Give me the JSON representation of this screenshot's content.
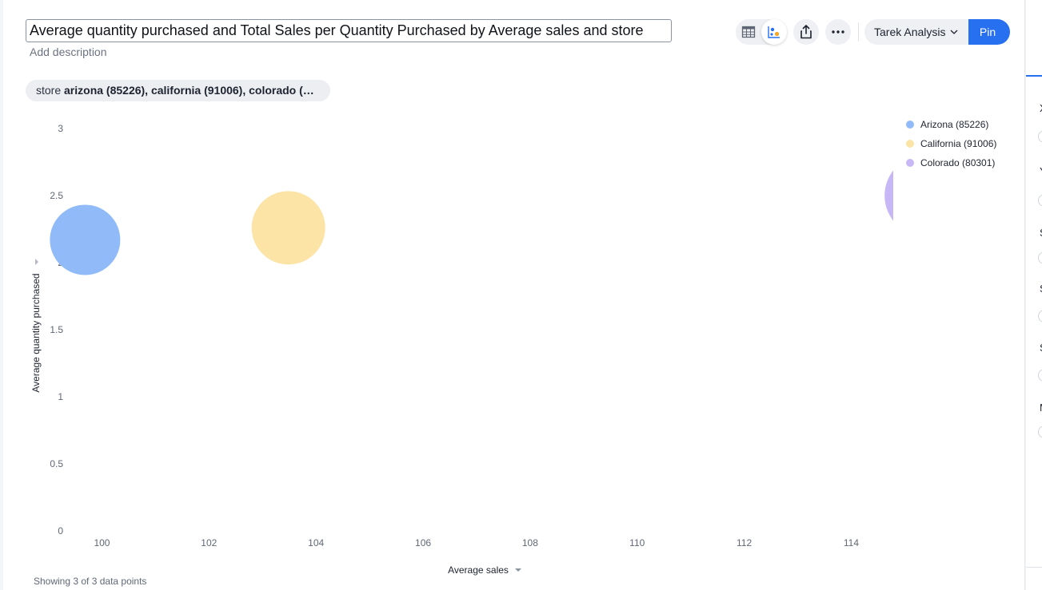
{
  "header": {
    "title": "Average quantity purchased and Total Sales per Quantity Purchased by Average sales and store",
    "description_placeholder": "Add description"
  },
  "toolbar": {
    "table_icon": "table-icon",
    "chart_icon": "chart-icon",
    "share_icon": "share-icon",
    "more_icon": "more-icon",
    "liveboard_label": "Tarek Analysis",
    "pin_label": "Pin",
    "accent_color": "#2770ef"
  },
  "filter": {
    "label": "store",
    "values": "arizona (85226), california (91006), colorado (…"
  },
  "footer": {
    "showing": "Showing 3 of 3 data points"
  },
  "right_panel": {
    "letters": [
      "X",
      "Y",
      "S",
      "S",
      "S",
      "M"
    ]
  },
  "chart_data": {
    "type": "scatter",
    "title": "",
    "xlabel": "Average sales",
    "ylabel": "Average quantity purchased",
    "xlim": [
      99.5,
      114.8
    ],
    "ylim": [
      0,
      3
    ],
    "x_ticks": [
      "100",
      "102",
      "104",
      "106",
      "108",
      "110",
      "112",
      "114"
    ],
    "y_ticks": [
      "0",
      "0.5",
      "1",
      "1.5",
      "2",
      "2.5",
      "3"
    ],
    "legend_position": "top-right",
    "series": [
      {
        "name": "Arizona (85226)",
        "color": "#91bbf8",
        "points": [
          {
            "x": 99.7,
            "y": 2.17,
            "size": 44
          }
        ]
      },
      {
        "name": "California (91006)",
        "color": "#fce3a6",
        "points": [
          {
            "x": 103.5,
            "y": 2.26,
            "size": 46
          }
        ]
      },
      {
        "name": "Colorado (80301)",
        "color": "#c7b7f6",
        "points": [
          {
            "x": 115.4,
            "y": 2.5,
            "size": 51
          }
        ]
      }
    ]
  }
}
